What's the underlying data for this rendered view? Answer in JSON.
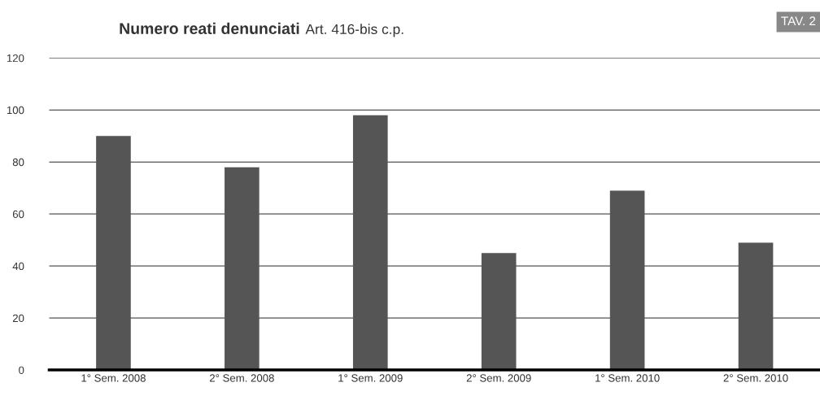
{
  "chart_data": {
    "type": "bar",
    "title": "Numero reati denunciati",
    "subtitle": "Art. 416-bis c.p.",
    "annotations": [
      "TAV. 2"
    ],
    "categories": [
      "1° Sem. 2008",
      "2° Sem. 2008",
      "1° Sem. 2009",
      "2° Sem. 2009",
      "1° Sem. 2010",
      "2° Sem. 2010"
    ],
    "values": [
      90,
      78,
      98,
      45,
      69,
      49
    ],
    "color": "#555555",
    "ylim": [
      0,
      120
    ],
    "yticks": [
      0,
      20,
      40,
      60,
      80,
      100,
      120
    ],
    "grid": "y",
    "legend": false
  }
}
